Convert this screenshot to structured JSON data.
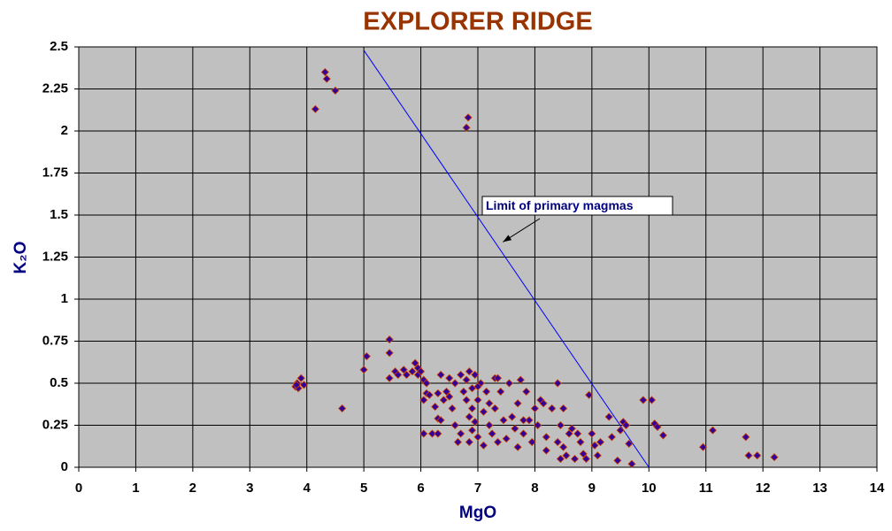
{
  "chart_data": {
    "type": "scatter",
    "title": "EXPLORER RIDGE",
    "x_label": "MgO",
    "y_label": "K₂O",
    "xlim": [
      0,
      14
    ],
    "ylim": [
      0,
      2.5
    ],
    "xticks": [
      0,
      1,
      2,
      3,
      4,
      5,
      6,
      7,
      8,
      9,
      10,
      11,
      12,
      13,
      14
    ],
    "yticks": [
      0,
      0.25,
      0.5,
      0.75,
      1,
      1.25,
      1.5,
      1.75,
      2,
      2.25,
      2.5
    ],
    "grid": true,
    "plot_background": "#c0c0c0",
    "series": [
      {
        "color": "#330099",
        "edge_color": "#cc4400",
        "x": [
          4.32,
          4.35,
          4.5,
          4.15,
          6.83,
          6.8,
          3.8,
          3.83,
          3.85,
          3.9,
          3.95,
          3.82,
          4.62,
          5.0,
          5.05,
          5.45,
          5.45,
          5.45,
          5.55,
          5.6,
          5.7,
          5.75,
          5.85,
          5.9,
          5.95,
          5.95,
          6.0,
          6.05,
          6.1,
          6.05,
          6.1,
          6.15,
          6.25,
          6.2,
          6.05,
          6.3,
          6.3,
          6.35,
          6.3,
          6.35,
          6.4,
          6.45,
          6.5,
          6.5,
          6.55,
          6.6,
          6.65,
          6.7,
          6.7,
          6.6,
          6.75,
          6.8,
          6.8,
          6.85,
          6.85,
          6.85,
          6.9,
          6.9,
          6.95,
          6.95,
          7.0,
          7.0,
          7.05,
          7.1,
          7.1,
          7.15,
          7.2,
          7.2,
          7.25,
          7.3,
          7.3,
          7.35,
          7.4,
          7.45,
          7.5,
          7.55,
          7.6,
          7.65,
          7.7,
          7.7,
          7.75,
          7.8,
          7.85,
          7.9,
          7.95,
          8.0,
          8.05,
          8.1,
          8.15,
          8.2,
          8.2,
          8.3,
          8.4,
          8.45,
          8.45,
          8.5,
          8.5,
          8.55,
          8.6,
          8.65,
          8.7,
          8.75,
          8.8,
          8.85,
          8.9,
          8.95,
          9.0,
          9.05,
          9.1,
          9.15,
          9.3,
          9.35,
          9.45,
          9.5,
          9.55,
          9.6,
          9.65,
          9.7,
          9.9,
          10.05,
          10.1,
          10.15,
          10.25,
          10.95,
          11.12,
          11.7,
          11.75,
          11.9,
          12.2,
          7.35,
          6.9,
          7.0,
          7.8,
          8.4
        ],
        "y": [
          2.35,
          2.31,
          2.24,
          2.13,
          2.08,
          2.02,
          0.48,
          0.5,
          0.47,
          0.53,
          0.49,
          0.49,
          0.35,
          0.58,
          0.66,
          0.76,
          0.68,
          0.53,
          0.57,
          0.55,
          0.58,
          0.55,
          0.57,
          0.62,
          0.59,
          0.55,
          0.57,
          0.52,
          0.5,
          0.4,
          0.44,
          0.43,
          0.36,
          0.2,
          0.2,
          0.2,
          0.29,
          0.28,
          0.44,
          0.55,
          0.4,
          0.45,
          0.42,
          0.53,
          0.35,
          0.25,
          0.15,
          0.2,
          0.55,
          0.5,
          0.45,
          0.4,
          0.52,
          0.57,
          0.3,
          0.15,
          0.22,
          0.47,
          0.55,
          0.27,
          0.18,
          0.4,
          0.5,
          0.33,
          0.13,
          0.45,
          0.25,
          0.38,
          0.2,
          0.53,
          0.35,
          0.15,
          0.45,
          0.28,
          0.17,
          0.5,
          0.3,
          0.23,
          0.12,
          0.38,
          0.52,
          0.2,
          0.45,
          0.28,
          0.15,
          0.35,
          0.25,
          0.4,
          0.38,
          0.1,
          0.18,
          0.35,
          0.5,
          0.05,
          0.25,
          0.12,
          0.35,
          0.07,
          0.2,
          0.23,
          0.05,
          0.2,
          0.15,
          0.08,
          0.05,
          0.43,
          0.2,
          0.13,
          0.07,
          0.15,
          0.3,
          0.18,
          0.04,
          0.22,
          0.27,
          0.25,
          0.14,
          0.02,
          0.4,
          0.4,
          0.26,
          0.24,
          0.19,
          0.12,
          0.22,
          0.18,
          0.07,
          0.07,
          0.06,
          0.53,
          0.35,
          0.48,
          0.28,
          0.15
        ]
      }
    ],
    "reference_line": {
      "color": "#0000ff",
      "x": [
        5,
        10
      ],
      "y": [
        2.48,
        0
      ]
    },
    "annotation": {
      "text": "Limit of primary magmas",
      "x": 7.44,
      "y": 1.34
    }
  }
}
